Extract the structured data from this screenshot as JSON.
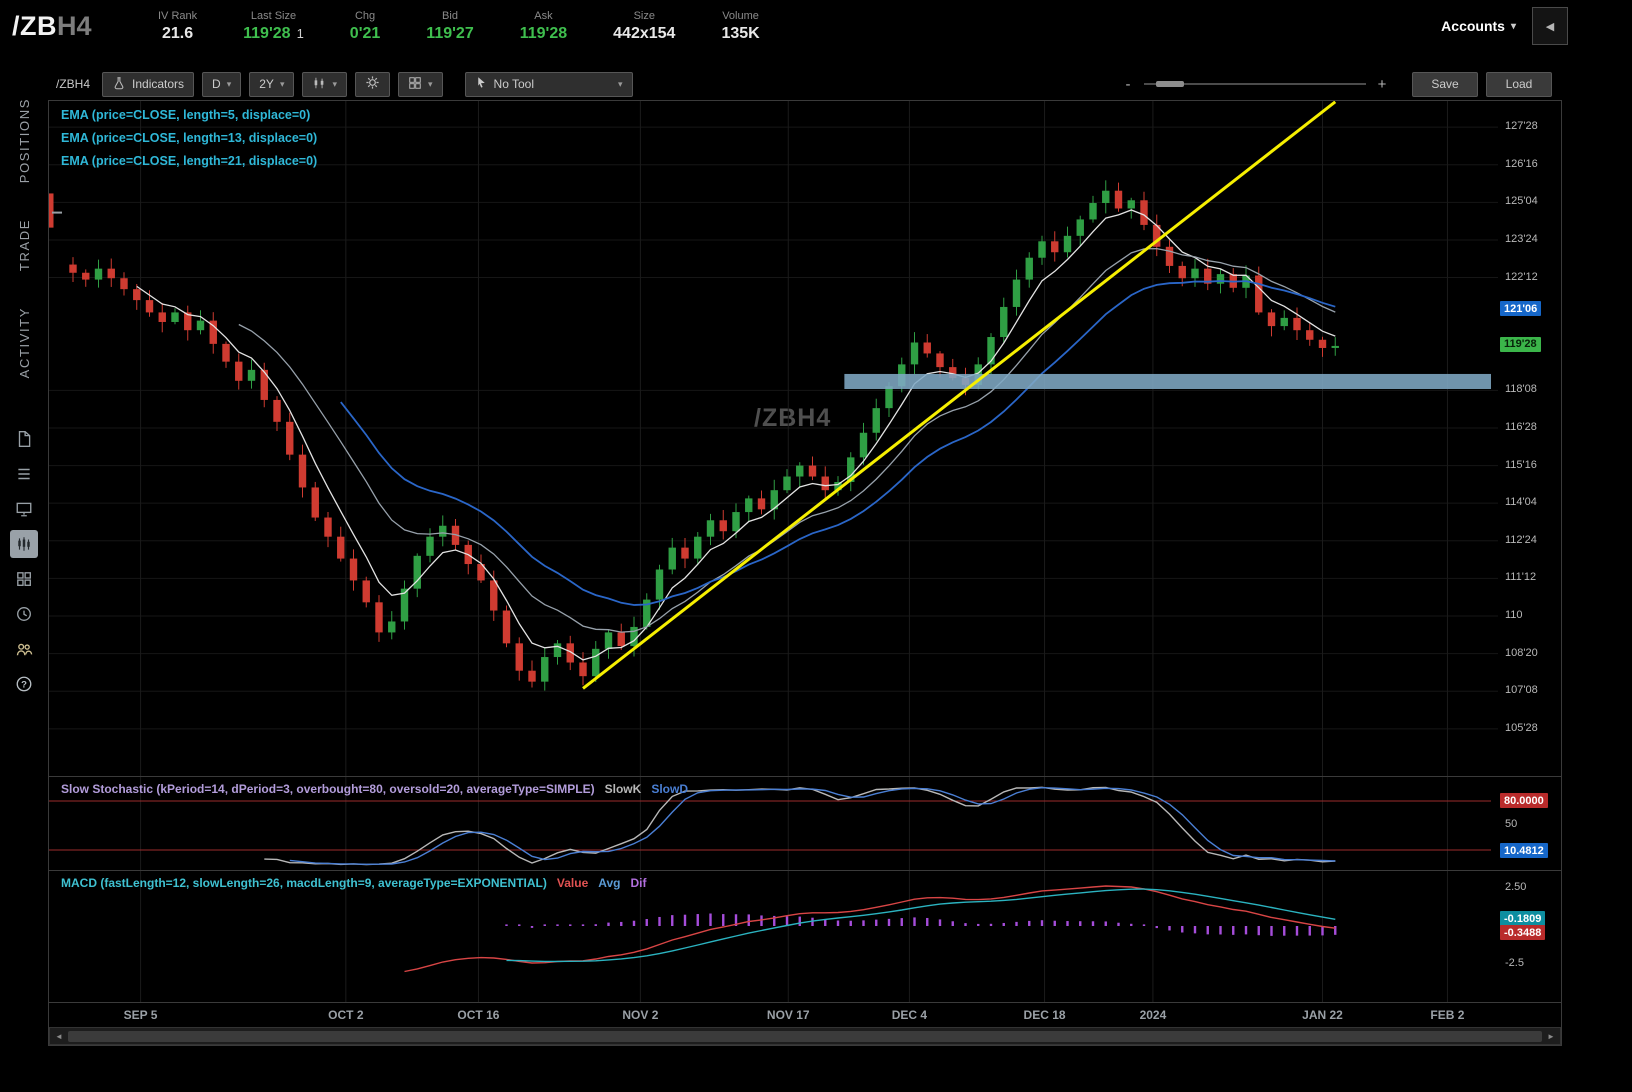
{
  "header": {
    "symbol": "/ZB",
    "symbol_suffix": "H4",
    "stats": [
      {
        "label": "IV Rank",
        "value": "21.6",
        "color": "#e8e8e8"
      },
      {
        "label": "Last Size",
        "value": "119'28",
        "extra": "1",
        "color": "#3fbf4e"
      },
      {
        "label": "Chg",
        "value": "0'21",
        "color": "#3fbf4e"
      },
      {
        "label": "Bid",
        "value": "119'27",
        "color": "#3fbf4e"
      },
      {
        "label": "Ask",
        "value": "119'28",
        "color": "#3fbf4e"
      },
      {
        "label": "Size",
        "value": "442x154",
        "color": "#e8e8e8"
      },
      {
        "label": "Volume",
        "value": "135K",
        "color": "#e8e8e8"
      }
    ],
    "accounts_label": "Accounts"
  },
  "sidebar": {
    "tabs": [
      "POSITIONS",
      "TRADE",
      "ACTIVITY"
    ],
    "icons": [
      "scanner",
      "watchlist",
      "monitor",
      "charts",
      "grid",
      "history",
      "community",
      "help"
    ],
    "active_icon": "charts"
  },
  "toolbar": {
    "symbol": "/ZBH4",
    "indicators_label": "Indicators",
    "aggregation": "D",
    "range": "2Y",
    "tool_label": "No Tool",
    "zoom_out": "-",
    "zoom_in": "+",
    "save_label": "Save",
    "load_label": "Load"
  },
  "chart_data": {
    "type": "candlestick",
    "symbol": "/ZBH4",
    "watermark": "/ZBH4",
    "studies": [
      "EMA (price=CLOSE, length=5, displace=0)",
      "EMA (price=CLOSE, length=13, displace=0)",
      "EMA (price=CLOSE, length=21, displace=0)"
    ],
    "price_axis": {
      "range": [
        104.15,
        128.83
      ],
      "labels": [
        {
          "t": "127'28",
          "p": 127.875
        },
        {
          "t": "126'16",
          "p": 126.5
        },
        {
          "t": "125'04",
          "p": 125.125
        },
        {
          "t": "123'24",
          "p": 123.75
        },
        {
          "t": "122'12",
          "p": 122.375
        },
        {
          "t": "118'08",
          "p": 118.25
        },
        {
          "t": "116'28",
          "p": 116.875
        },
        {
          "t": "115'16",
          "p": 115.5
        },
        {
          "t": "114'04",
          "p": 114.125
        },
        {
          "t": "112'24",
          "p": 112.75
        },
        {
          "t": "111'12",
          "p": 111.375
        },
        {
          "t": "110",
          "p": 110.0
        },
        {
          "t": "108'20",
          "p": 108.625
        },
        {
          "t": "107'08",
          "p": 107.25
        },
        {
          "t": "105'28",
          "p": 105.875
        }
      ],
      "badges": [
        {
          "t": "121'06",
          "p": 121.1875,
          "bg": "#1667c9",
          "fg": "#ffffff"
        },
        {
          "t": "119'28",
          "p": 119.875,
          "bg": "#3bb54a",
          "fg": "#07230a"
        }
      ]
    },
    "time_axis": [
      {
        "label": "SEP 5",
        "i": 5.3
      },
      {
        "label": "OCT 2",
        "i": 21.4
      },
      {
        "label": "OCT 16",
        "i": 31.8
      },
      {
        "label": "NOV 2",
        "i": 44.5
      },
      {
        "label": "NOV 17",
        "i": 56.1
      },
      {
        "label": "DEC 4",
        "i": 65.6
      },
      {
        "label": "DEC 18",
        "i": 76.2
      },
      {
        "label": "2024",
        "i": 84.7
      },
      {
        "label": "JAN 22",
        "i": 98
      },
      {
        "label": "FEB 2",
        "i": 107.8
      }
    ],
    "first_open": 122.85,
    "closes": [
      122.55,
      122.3,
      122.7,
      122.35,
      121.95,
      121.55,
      121.1,
      120.75,
      121.1,
      120.45,
      120.8,
      119.95,
      119.3,
      118.6,
      119.0,
      117.9,
      117.1,
      115.9,
      114.7,
      113.6,
      112.9,
      112.1,
      111.3,
      110.5,
      109.4,
      109.8,
      111.0,
      112.2,
      112.9,
      113.3,
      112.6,
      111.9,
      111.3,
      110.2,
      109.0,
      108.0,
      107.6,
      108.5,
      109.0,
      108.3,
      107.8,
      108.8,
      109.4,
      108.9,
      109.6,
      110.6,
      111.7,
      112.5,
      112.1,
      112.9,
      113.5,
      113.1,
      113.8,
      114.3,
      113.9,
      114.6,
      115.1,
      115.5,
      115.1,
      114.6,
      114.9,
      115.8,
      116.7,
      117.6,
      118.4,
      119.2,
      120.0,
      119.6,
      119.1,
      118.7,
      118.45,
      119.2,
      120.2,
      121.3,
      122.3,
      123.1,
      123.7,
      123.3,
      123.9,
      124.5,
      125.1,
      125.55,
      124.9,
      125.2,
      124.3,
      123.5,
      122.8,
      122.35,
      122.7,
      122.15,
      122.5,
      122.0,
      122.45,
      121.1,
      120.6,
      120.9,
      120.45,
      120.1,
      119.8,
      119.875
    ],
    "trendline": {
      "i1": 40,
      "p1": 107.35,
      "i2": 99,
      "p2": 128.8,
      "color": "#f6ef00"
    },
    "support_zone": {
      "i1": 60.5,
      "p_top": 118.85,
      "p_bot": 118.3,
      "color": "#7fa9c4"
    },
    "colors": {
      "up": "#2f9e44",
      "down": "#cf3b31",
      "ema5": "#e3e3e3",
      "ema13": "#97a1ab",
      "ema21": "#2a66c8"
    },
    "stochastic": {
      "label": "Slow Stochastic (kPeriod=14, dPeriod=3, overbought=80, oversold=20, averageType=SIMPLE)",
      "label_color": "#b39ddb",
      "legend": [
        {
          "t": "SlowK",
          "c": "#b8b8b8"
        },
        {
          "t": "SlowD",
          "c": "#4a7fd4"
        }
      ],
      "k_period": 14,
      "d_period": 3,
      "overbought": 80,
      "oversold": 20,
      "axis": {
        "overbought_badge": "80.0000",
        "mid": "50",
        "current_badge": "10.4812"
      }
    },
    "macd": {
      "label": "MACD (fastLength=12, slowLength=26, macdLength=9, averageType=EXPONENTIAL)",
      "label_color": "#3fc1d1",
      "legend": [
        {
          "t": "Value",
          "c": "#e05252"
        },
        {
          "t": "Avg",
          "c": "#5b9bd5"
        },
        {
          "t": "Dif",
          "c": "#b26fde"
        }
      ],
      "fast": 12,
      "slow": 26,
      "signal": 9,
      "axis": {
        "top": "2.50",
        "bottom": "-2.5",
        "value_badge": "-0.3488",
        "avg_badge": "-0.1809"
      },
      "hist_color": "#a64ddb",
      "value_color": "#d84545",
      "avg_color": "#2bb3c0"
    }
  }
}
